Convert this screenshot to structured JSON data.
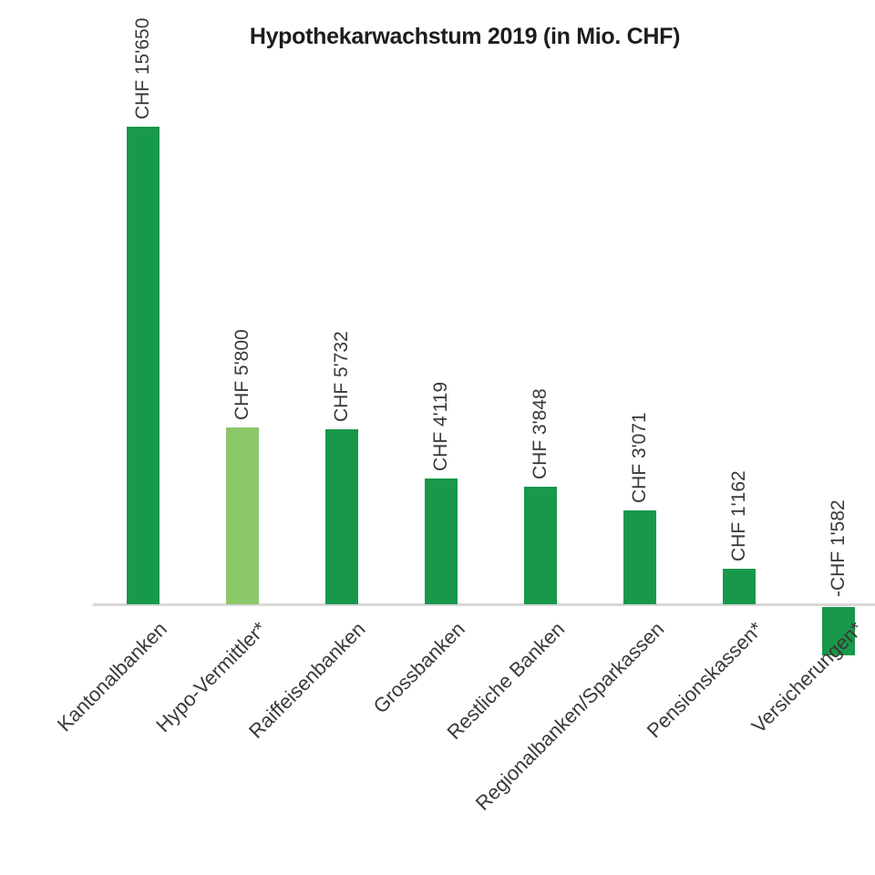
{
  "title": "Hypothekarwachstum 2019 (in Mio. CHF)",
  "chart_data": {
    "type": "bar",
    "title": "Hypothekarwachstum 2019 (in Mio. CHF)",
    "unit": "Mio. CHF",
    "categories": [
      "Kantonalbanken",
      "Hypo-Vermittler*",
      "Raiffeisenbanken",
      "Grossbanken",
      "Restliche Banken",
      "Regionalbanken/Sparkassen",
      "Pensionskassen*",
      "Versicherungen*"
    ],
    "values": [
      15650,
      5800,
      5732,
      4119,
      3848,
      3071,
      1162,
      -1582
    ],
    "value_labels": [
      "CHF 15'650",
      "CHF 5'800",
      "CHF 5'732",
      "CHF 4'119",
      "CHF 3'848",
      "CHF 3'071",
      "CHF 1'162",
      "-CHF 1'582"
    ],
    "bar_colors": [
      "#18984b",
      "#8cc76a",
      "#18984b",
      "#18984b",
      "#18984b",
      "#18984b",
      "#18984b",
      "#18984b"
    ],
    "ylim": [
      -1582,
      15650
    ],
    "grid": false,
    "legend": false,
    "x_axis_labels_rotation_deg": -45,
    "value_labels_rotation_deg": -90,
    "colors": {
      "primary_green": "#18984b",
      "highlight_green": "#8cc76a",
      "axis_line": "#d8d8d8",
      "label_text": "#3a3a39",
      "title_text": "#1d1d1b",
      "background": "#ffffff"
    }
  }
}
